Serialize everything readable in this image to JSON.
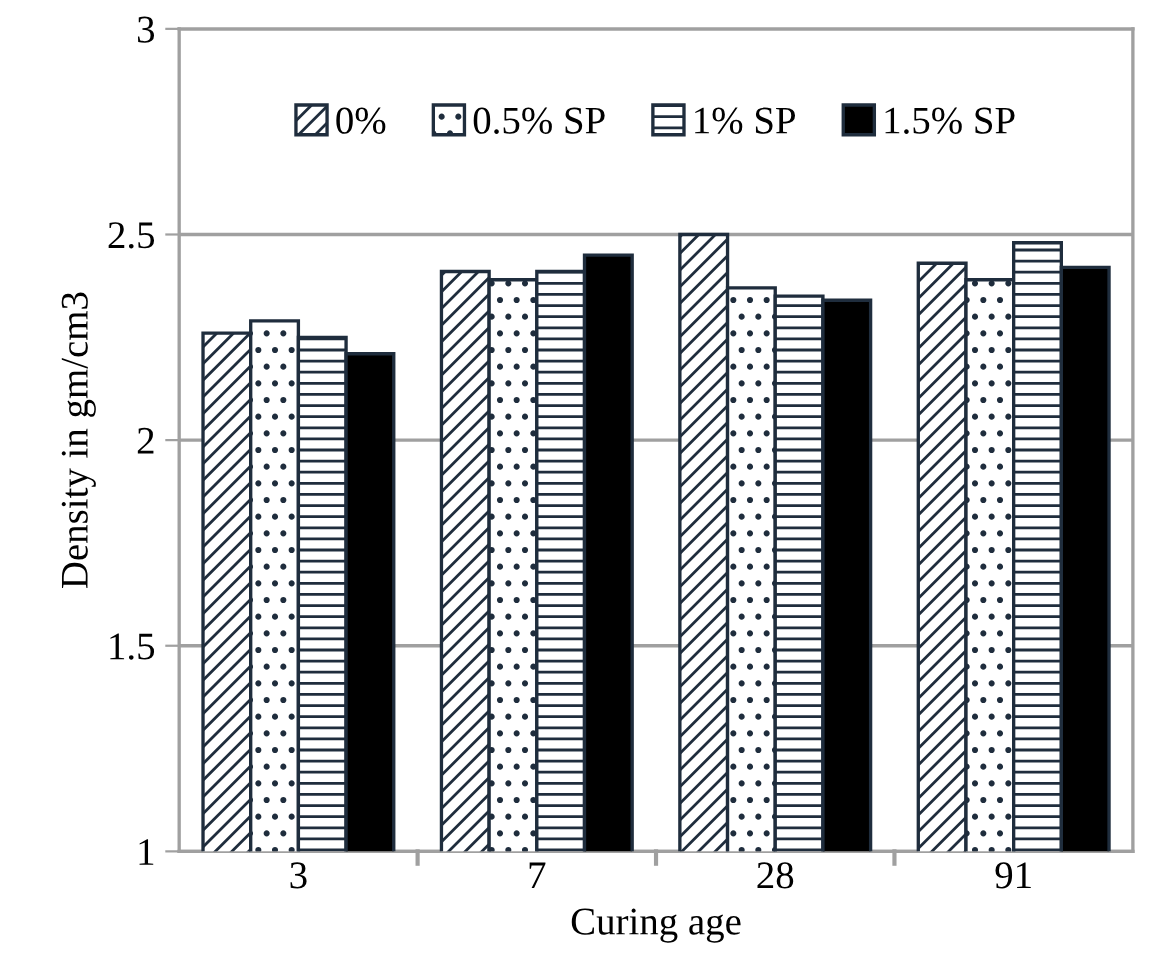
{
  "chart_data": {
    "type": "bar",
    "xlabel": "Curing age",
    "ylabel": "Density in gm/cm3",
    "categories": [
      "3",
      "7",
      "28",
      "91"
    ],
    "series": [
      {
        "name": "0%",
        "color": "#1f2d3d",
        "values": [
          2.26,
          2.41,
          2.5,
          2.43
        ]
      },
      {
        "name": "0.5% SP",
        "color": "#1f2d3d",
        "values": [
          2.29,
          2.39,
          2.37,
          2.39
        ]
      },
      {
        "name": "1% SP",
        "color": "#1f2d3d",
        "values": [
          2.25,
          2.41,
          2.35,
          2.48
        ]
      },
      {
        "name": "1.5% SP",
        "color": "#000000",
        "values": [
          2.21,
          2.45,
          2.34,
          2.42
        ]
      }
    ],
    "ylim": [
      1,
      3
    ],
    "yticks": [
      1,
      1.5,
      2,
      2.5,
      3
    ],
    "grid": "y",
    "legend": "top"
  }
}
